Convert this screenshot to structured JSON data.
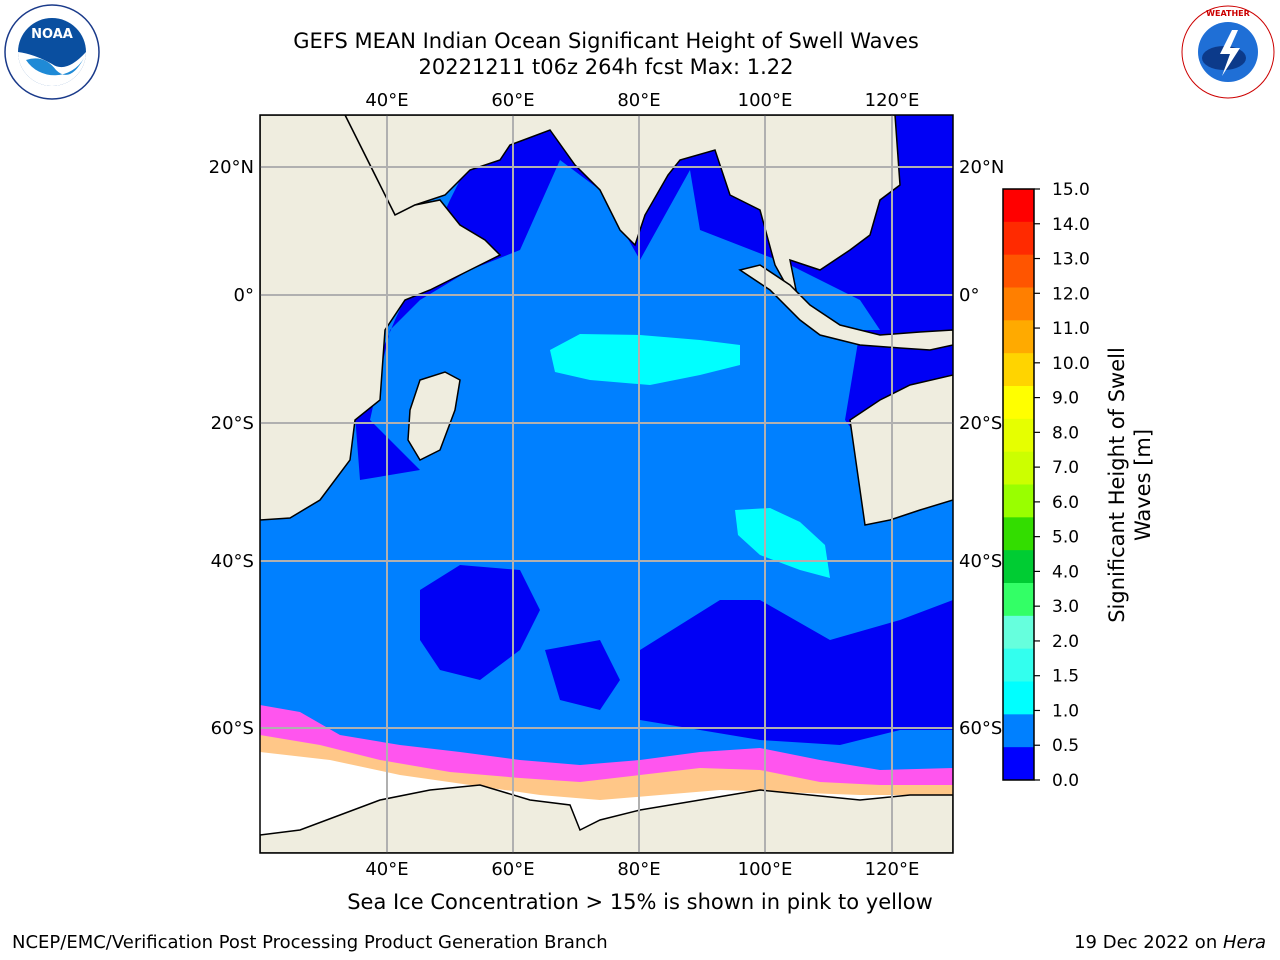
{
  "title_line1": "GEFS MEAN Indian Ocean Significant Height of Swell Waves",
  "title_line2": "20221211 t06z 264h fcst   Max: 1.22",
  "caption": "Sea Ice Concentration > 15% is shown in pink to yellow",
  "footer_left": "NCEP/EMC/Verification Post Processing Product Generation Branch",
  "footer_right_prefix": "19 Dec 2022 on ",
  "footer_right_machine": "Hera",
  "colorbar_label_line1": "Significant Height of Swell",
  "colorbar_label_line2": "Waves [m]",
  "lon_labels": [
    "40°E",
    "60°E",
    "80°E",
    "100°E",
    "120°E"
  ],
  "lat_labels": [
    "20°N",
    "0°",
    "20°S",
    "40°S",
    "60°S"
  ],
  "colorbar_ticks": [
    "15.0",
    "14.0",
    "13.0",
    "12.0",
    "11.0",
    "10.0",
    "9.0",
    "8.0",
    "7.0",
    "6.0",
    "5.0",
    "4.0",
    "3.0",
    "2.0",
    "1.5",
    "1.0",
    "0.5",
    "0.0"
  ],
  "colorbar_colors": [
    "#ff0000",
    "#ff2a00",
    "#ff5500",
    "#ff7f00",
    "#ffaa00",
    "#ffd400",
    "#ffff00",
    "#e6ff00",
    "#ccff00",
    "#99ff00",
    "#33dd00",
    "#00cc33",
    "#33ff66",
    "#66ffdd",
    "#33ffee",
    "#00ffff",
    "#0080ff",
    "#0000ff"
  ],
  "colors": {
    "land": "#efeddf",
    "ocean_dark": "#0000f5",
    "ocean_mid": "#0080ff",
    "ocean_light": "#00ffff",
    "ice_white": "#ffffff",
    "ice_pink": "#ff55ee",
    "ice_yellow": "#ffee66",
    "grid": "#b0b0b0"
  }
}
